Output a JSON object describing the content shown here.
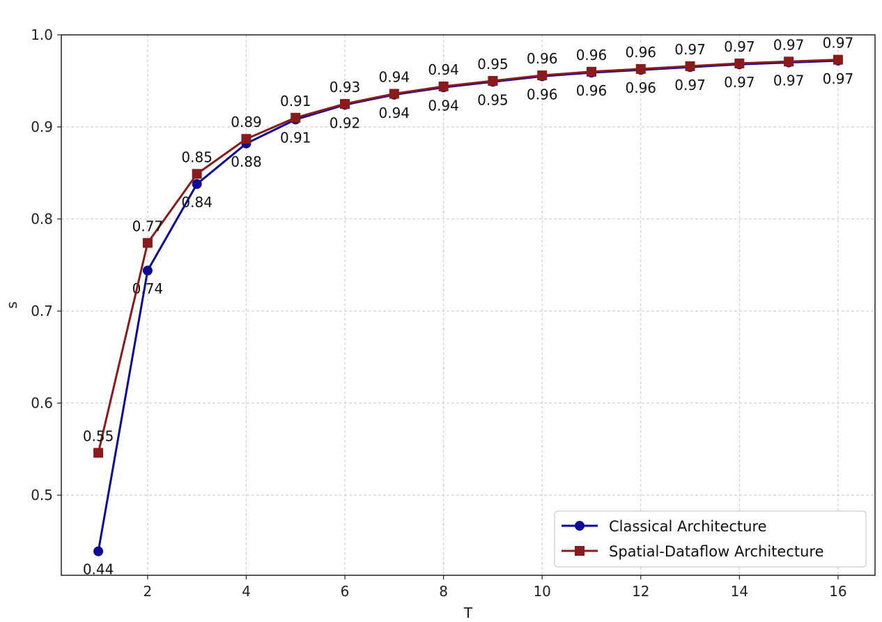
{
  "chart_data": {
    "type": "line",
    "xlabel": "T",
    "ylabel": "s",
    "xlim": [
      0.25,
      16.75
    ],
    "ylim": [
      0.413,
      1.0
    ],
    "xticks": [
      2,
      4,
      6,
      8,
      10,
      12,
      14,
      16
    ],
    "yticks": [
      0.5,
      0.6,
      0.7,
      0.8,
      0.9,
      1.0
    ],
    "grid": true,
    "legend_position": "bottom-right",
    "x": [
      1,
      2,
      3,
      4,
      5,
      6,
      7,
      8,
      9,
      10,
      11,
      12,
      13,
      14,
      15,
      16
    ],
    "series": [
      {
        "name": "Classical Architecture",
        "color": "#0a0a96",
        "marker": "circle",
        "values": [
          0.439,
          0.744,
          0.838,
          0.882,
          0.908,
          0.924,
          0.935,
          0.943,
          0.949,
          0.955,
          0.959,
          0.962,
          0.965,
          0.968,
          0.97,
          0.972
        ],
        "labels": [
          "0.44",
          "0.74",
          "0.84",
          "0.88",
          "0.91",
          "0.92",
          "0.94",
          "0.94",
          "0.95",
          "0.96",
          "0.96",
          "0.96",
          "0.97",
          "0.97",
          "0.97",
          "0.97"
        ]
      },
      {
        "name": "Spatial-Dataflow Architecture",
        "color": "#8b1a1a",
        "marker": "square",
        "values": [
          0.546,
          0.774,
          0.849,
          0.887,
          0.91,
          0.925,
          0.936,
          0.944,
          0.95,
          0.956,
          0.96,
          0.963,
          0.966,
          0.969,
          0.971,
          0.973
        ],
        "labels": [
          "0.55",
          "0.77",
          "0.85",
          "0.89",
          "0.91",
          "0.93",
          "0.94",
          "0.94",
          "0.95",
          "0.96",
          "0.96",
          "0.96",
          "0.97",
          "0.97",
          "0.97",
          "0.97"
        ]
      }
    ]
  }
}
